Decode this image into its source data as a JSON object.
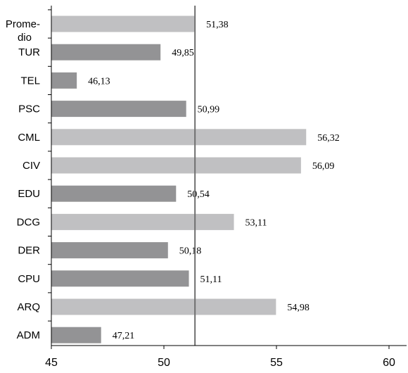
{
  "chart_data": {
    "type": "bar",
    "orientation": "horizontal",
    "categories": [
      "Prome-dio",
      "TUR",
      "TEL",
      "PSC",
      "CML",
      "CIV",
      "EDU",
      "DCG",
      "DER",
      "CPU",
      "ARQ",
      "ADM"
    ],
    "values": [
      51.38,
      49.85,
      46.13,
      50.99,
      56.32,
      56.09,
      50.54,
      53.11,
      50.18,
      51.11,
      54.98,
      47.21
    ],
    "value_labels": [
      "51,38",
      "49,85",
      "46,13",
      "50,99",
      "56,32",
      "56,09",
      "50,54",
      "53,11",
      "50,18",
      "51,11",
      "54,98",
      "47,21"
    ],
    "bar_shades": [
      "light",
      "dark",
      "dark",
      "dark",
      "light",
      "light",
      "dark",
      "light",
      "dark",
      "dark",
      "light",
      "dark"
    ],
    "colors": {
      "light": "#c0c0c2",
      "dark": "#939395",
      "reference_line": "#707070",
      "axis": "#000000"
    },
    "reference_value": 51.38,
    "xlim": [
      45,
      60
    ],
    "xticks": [
      45,
      50,
      55,
      60
    ],
    "grid": false,
    "title": "",
    "xlabel": "",
    "ylabel": ""
  }
}
